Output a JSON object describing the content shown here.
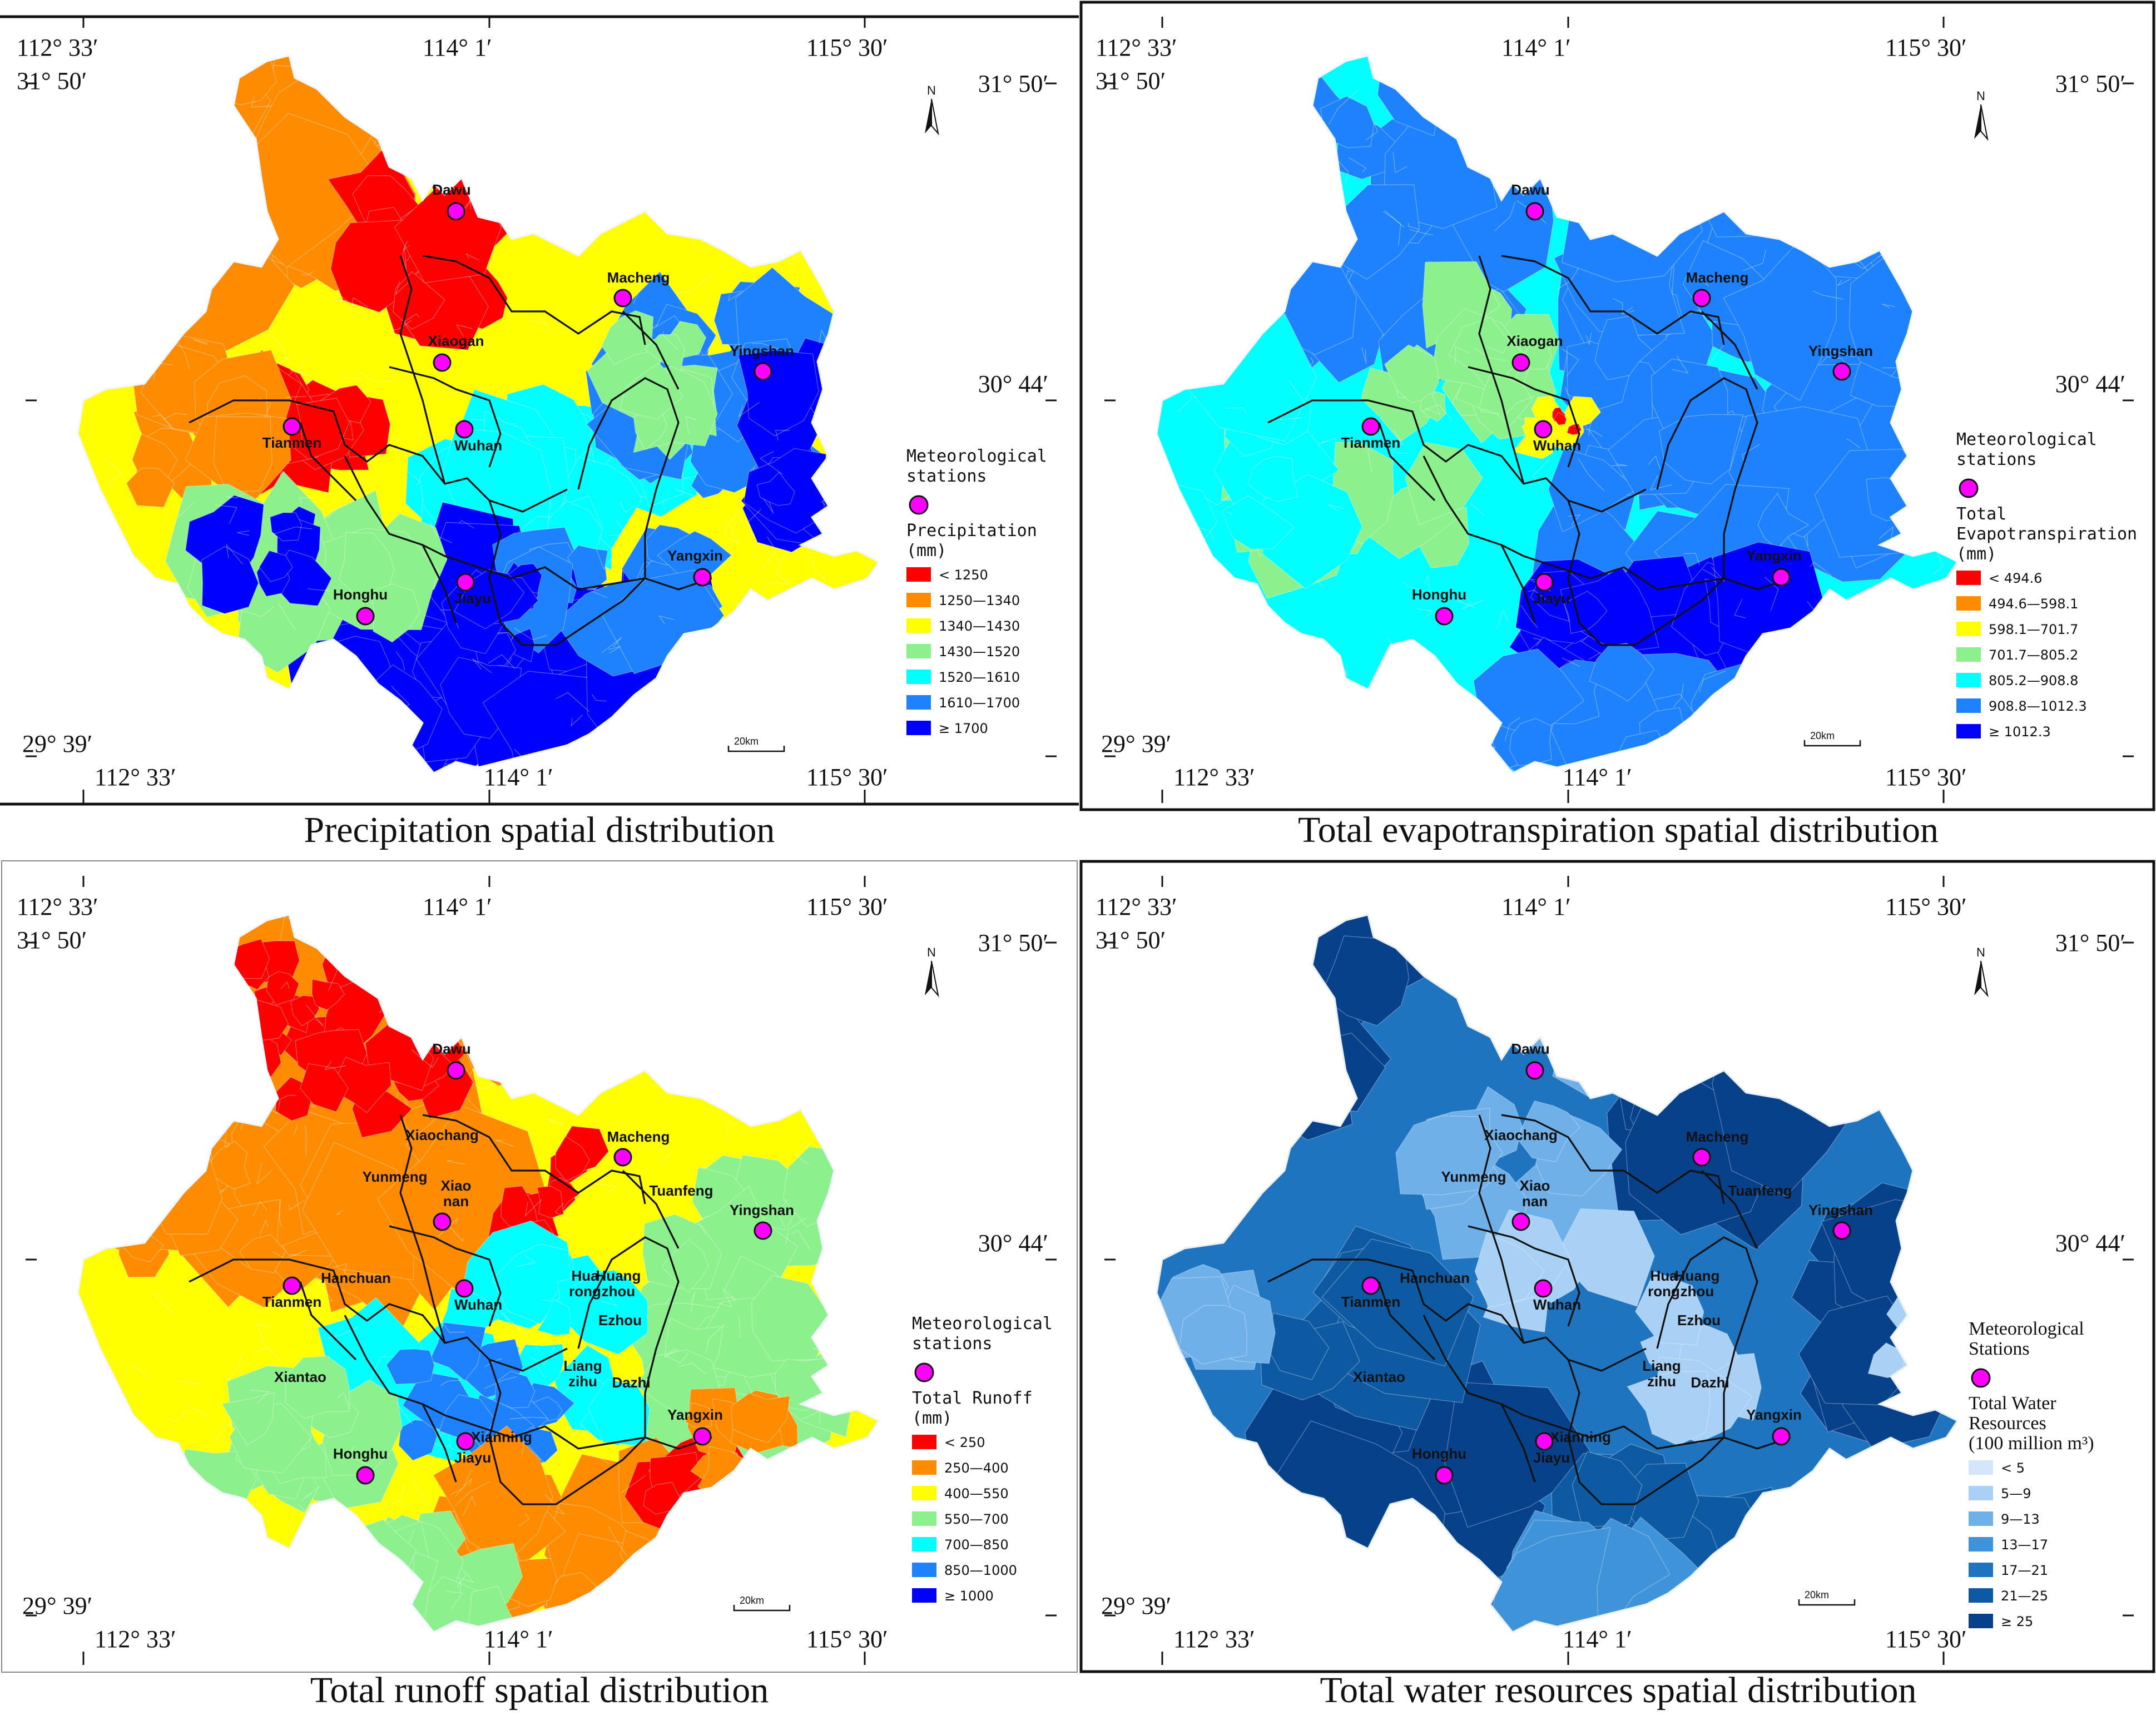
{
  "coords": {
    "lon_west": "112° 33′",
    "lon_mid": "114° 1′",
    "lon_east": "115° 30′",
    "lat_north": "31° 50′",
    "lat_mid": "30° 44′",
    "lat_south": "29° 39′"
  },
  "north_label": "N",
  "scale_label": "20km",
  "panels": [
    {
      "id": "precipitation",
      "caption": "Precipitation spatial distribution",
      "stations_label_lines": [
        "Meteorological",
        "stations"
      ],
      "legend_title_lines": [
        "Precipitation",
        "(mm)"
      ],
      "legend": [
        {
          "label": "< 1250",
          "color": "#ff0000"
        },
        {
          "label": "1250—1340",
          "color": "#ff8c00"
        },
        {
          "label": "1340—1430",
          "color": "#ffff00"
        },
        {
          "label": "1430—1520",
          "color": "#8cf08c"
        },
        {
          "label": "1520—1610",
          "color": "#00ffff"
        },
        {
          "label": "1610—1700",
          "color": "#1e82ff"
        },
        {
          "label": "≥ 1700",
          "color": "#0000ff"
        }
      ],
      "stations": [
        "Dawu",
        "Macheng",
        "Xiaogan",
        "Yingshan",
        "Tianmen",
        "Wuhan",
        "Honghu",
        "Jiayu",
        "Yangxin"
      ],
      "county_names": []
    },
    {
      "id": "evapotranspiration",
      "caption": "Total evapotranspiration spatial distribution",
      "stations_label_lines": [
        "Meteorological",
        "stations"
      ],
      "legend_title_lines": [
        "Total",
        "Evapotranspiration",
        "(mm)"
      ],
      "legend": [
        {
          "label": "< 494.6",
          "color": "#ff0000"
        },
        {
          "label": "494.6—598.1",
          "color": "#ff8c00"
        },
        {
          "label": "598.1—701.7",
          "color": "#ffff00"
        },
        {
          "label": "701.7—805.2",
          "color": "#8cf08c"
        },
        {
          "label": "805.2—908.8",
          "color": "#00ffff"
        },
        {
          "label": "908.8—1012.3",
          "color": "#1e82ff"
        },
        {
          "label": "≥ 1012.3",
          "color": "#0000ff"
        }
      ],
      "stations": [
        "Dawu",
        "Macheng",
        "Xiaogan",
        "Yingshan",
        "Tianmen",
        "Wuhan",
        "Honghu",
        "Jiayu",
        "Yangxin"
      ],
      "county_names": []
    },
    {
      "id": "runoff",
      "caption": "Total runoff spatial distribution",
      "stations_label_lines": [
        "Meteorological",
        "stations"
      ],
      "legend_title_lines": [
        "Total Runoff",
        "(mm)"
      ],
      "legend": [
        {
          "label": "< 250",
          "color": "#ff0000"
        },
        {
          "label": "250—400",
          "color": "#ff8c00"
        },
        {
          "label": "400—550",
          "color": "#ffff00"
        },
        {
          "label": "550—700",
          "color": "#8cf08c"
        },
        {
          "label": "700—850",
          "color": "#00ffff"
        },
        {
          "label": "850—1000",
          "color": "#1e82ff"
        },
        {
          "label": "≥ 1000",
          "color": "#0000ff"
        }
      ],
      "stations": [
        "Dawu",
        "Macheng",
        "Xiao nan",
        "Yingshan",
        "Tianmen",
        "Wuhan",
        "Honghu",
        "Jiayu",
        "Yangxin"
      ],
      "county_names": [
        "Xiaochang",
        "Yunmeng",
        "Tuanfeng",
        "Hanchuan",
        "Huang zhou",
        "Hua rong",
        "Ezhou",
        "Xiantao",
        "Liang zihu",
        "Dazhi",
        "Xianning"
      ]
    },
    {
      "id": "water_resources",
      "caption": "Total water resources spatial distribution",
      "stations_label_lines": [
        "Meteorological",
        "Stations"
      ],
      "legend_title_lines": [
        "Total Water",
        "Resources",
        "(100 million m³)"
      ],
      "legend": [
        {
          "label": "< 5",
          "color": "#d4e7fa"
        },
        {
          "label": "5—9",
          "color": "#a9d0f5"
        },
        {
          "label": "9—13",
          "color": "#6fb0e8"
        },
        {
          "label": "13—17",
          "color": "#3f93d8"
        },
        {
          "label": "17—21",
          "color": "#1f74bf"
        },
        {
          "label": "21—25",
          "color": "#0d5aa3"
        },
        {
          "label": "≥ 25",
          "color": "#06418a"
        }
      ],
      "stations": [
        "Dawu",
        "Macheng",
        "Xiao nan",
        "Yingshan",
        "Tianmen",
        "Wuhan",
        "Honghu",
        "Jiayu",
        "Yangxin"
      ],
      "county_names": [
        "Xiaochang",
        "Yunmeng",
        "Tuanfeng",
        "Hanchuan",
        "Huang zhou",
        "Hua rong",
        "Ezhou",
        "Xiantao",
        "Liang zihu",
        "Dazhi",
        "Xianning"
      ]
    }
  ]
}
